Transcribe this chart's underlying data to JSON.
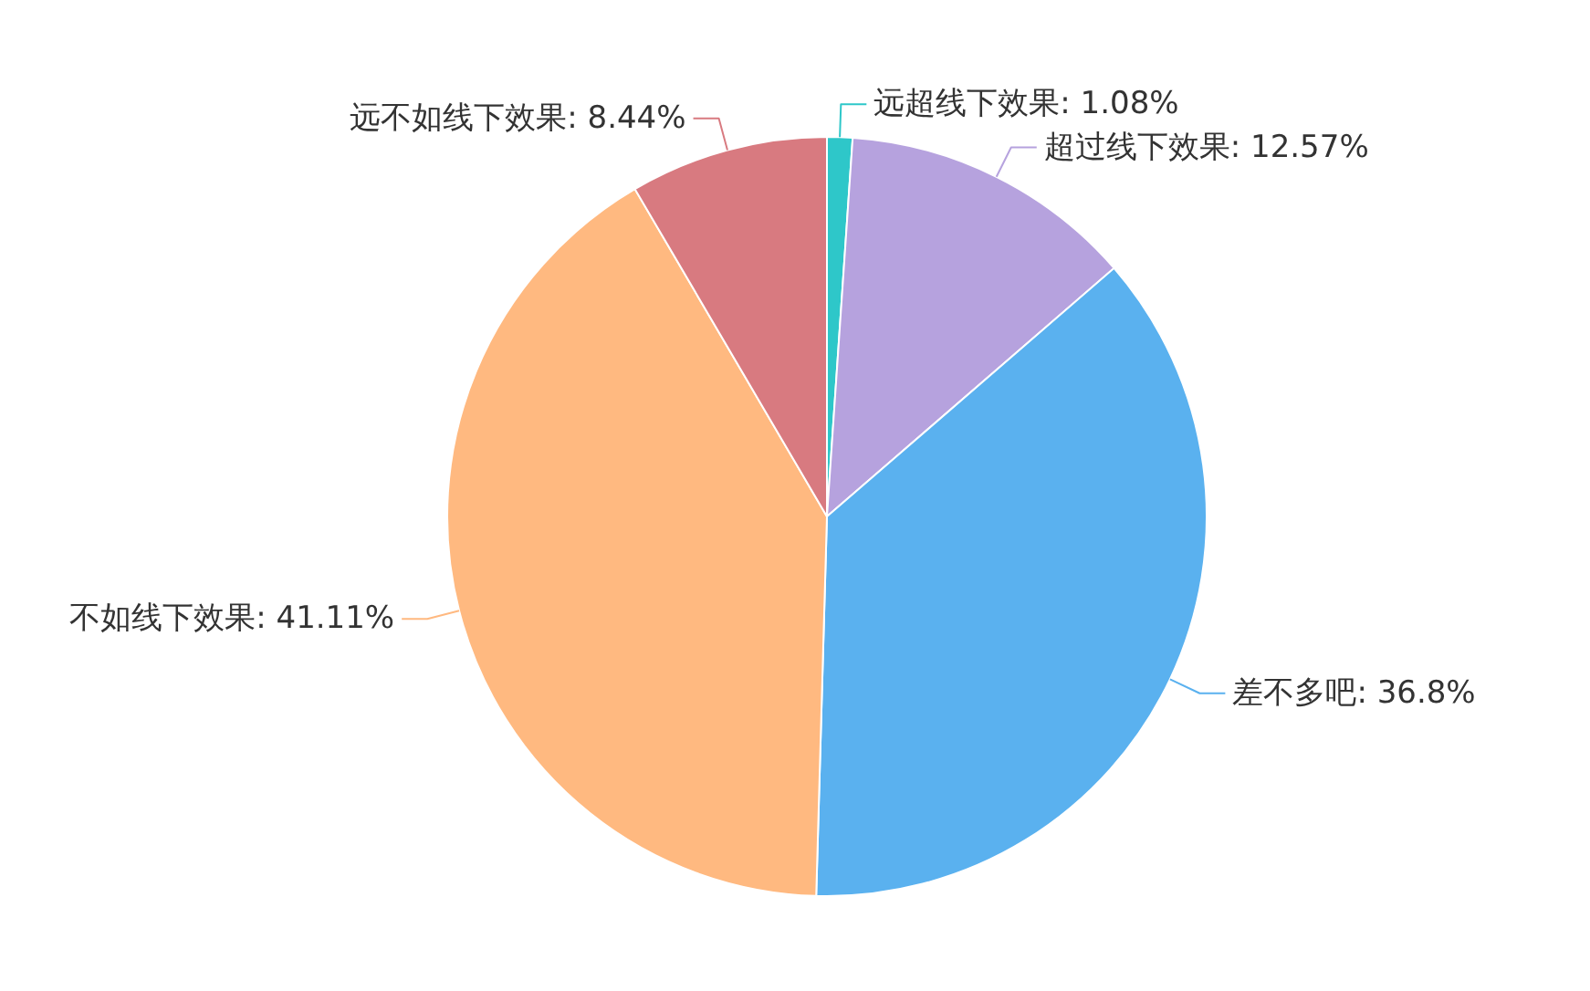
{
  "chart_data": {
    "type": "pie",
    "categories": [
      "远超线下效果",
      "超过线下效果",
      "差不多吧",
      "不如线下效果",
      "远不如线下效果"
    ],
    "values": [
      1.08,
      12.57,
      36.8,
      41.11,
      8.44
    ],
    "colors": [
      "#2ec7c9",
      "#b6a2de",
      "#5ab1ef",
      "#ffb980",
      "#d87a80"
    ],
    "value_labels": [
      "1.08%",
      "12.57%",
      "36.8%",
      "41.11%",
      "8.44%"
    ]
  }
}
